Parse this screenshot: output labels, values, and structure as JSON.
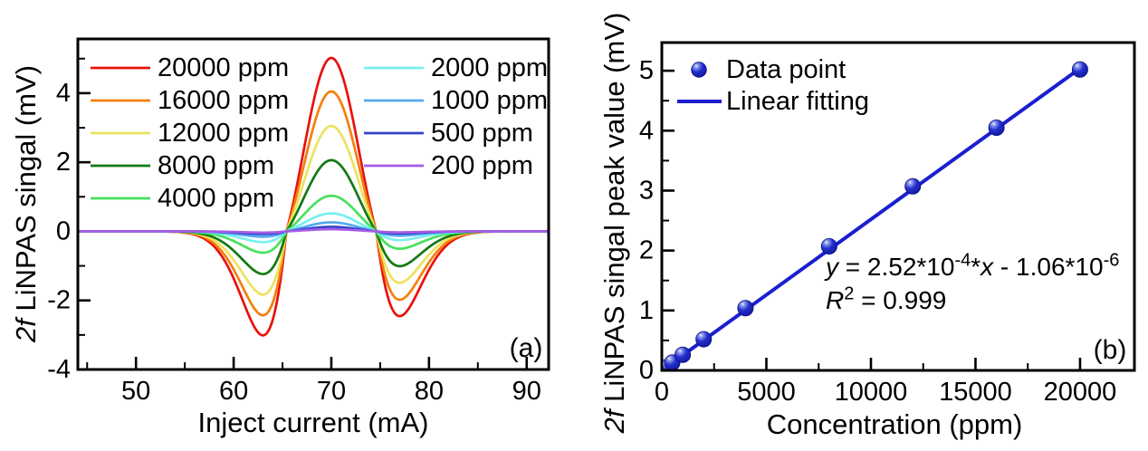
{
  "chart_data": [
    {
      "id": "a",
      "type": "line",
      "panel_label": "(a)",
      "xlabel": "Inject current (mA)",
      "ylabel_parts": [
        [
          "2f",
          "i"
        ],
        [
          " LiNPAS singal (mV)",
          ""
        ]
      ],
      "xlim": [
        44.05,
        92.25
      ],
      "ylim": [
        -4,
        5.57
      ],
      "xticks": [
        50,
        60,
        70,
        80,
        90
      ],
      "xminor": [
        45,
        55,
        65,
        75,
        85
      ],
      "yticks": [
        4,
        2,
        0,
        -2,
        -4
      ],
      "yminor": [
        5,
        3,
        1,
        -1,
        -3
      ],
      "lineshape_model": {
        "description": "2f WMS lineshape: f(v)=(1-v^2)*exp(-v^2/k), v=(x-center)/sigma; negative lobes scaled asymmetrically",
        "center_mA": 70,
        "sigma": 4.6,
        "k": 1.316,
        "neg_scale_left": 2.65,
        "neg_scale_right": 2.16
      },
      "series": [
        {
          "label": "20000 ppm",
          "color": "#e8110d",
          "peak_mV": 5.02
        },
        {
          "label": "16000 ppm",
          "color": "#f57f0a",
          "peak_mV": 4.05
        },
        {
          "label": "12000 ppm",
          "color": "#ece25e",
          "peak_mV": 3.05
        },
        {
          "label": "8000 ppm",
          "color": "#127a12",
          "peak_mV": 2.06
        },
        {
          "label": "4000 ppm",
          "color": "#46e25b",
          "peak_mV": 1.03
        },
        {
          "label": "2000 ppm",
          "color": "#76f0ef",
          "peak_mV": 0.52
        },
        {
          "label": "1000 ppm",
          "color": "#54aaf0",
          "peak_mV": 0.26
        },
        {
          "label": "500 ppm",
          "color": "#3544c8",
          "peak_mV": 0.13
        },
        {
          "label": "200 ppm",
          "color": "#a55ce5",
          "peak_mV": 0.06
        }
      ],
      "legend_col1": [
        0,
        1,
        2,
        3,
        4
      ],
      "legend_col2": [
        5,
        6,
        7,
        8
      ]
    },
    {
      "id": "b",
      "type": "scatter",
      "panel_label": "(b)",
      "xlabel": "Concentration (ppm)",
      "ylabel_parts": [
        [
          "2f",
          "i"
        ],
        [
          " LiNPAS singal peak value (mV)",
          ""
        ]
      ],
      "xlim": [
        0,
        22600
      ],
      "ylim": [
        0,
        5.47
      ],
      "xticks": [
        0,
        5000,
        10000,
        15000,
        20000
      ],
      "xminor": [
        2500,
        7500,
        12500,
        17500
      ],
      "yticks": [
        0,
        1,
        2,
        3,
        4,
        5
      ],
      "yminor": [
        0.5,
        1.5,
        2.5,
        3.5,
        4.5
      ],
      "points": {
        "x": [
          200,
          500,
          1000,
          2000,
          4000,
          8000,
          12000,
          16000,
          20000
        ],
        "y": [
          0.05,
          0.13,
          0.26,
          0.52,
          1.04,
          2.07,
          3.07,
          4.05,
          5.02
        ]
      },
      "fit": {
        "slope": 0.000252,
        "intercept": -1.06e-06
      },
      "equation_parts": [
        [
          "y",
          "i"
        ],
        [
          " = 2.52*10",
          ""
        ],
        [
          "-4",
          "sup"
        ],
        [
          "*",
          ""
        ],
        [
          "x",
          "i"
        ],
        [
          " - 1.06*10",
          ""
        ],
        [
          "-6",
          "sup"
        ]
      ],
      "r2_parts": [
        [
          "R",
          "i"
        ],
        [
          "2",
          "sup"
        ],
        [
          " = 0.999",
          ""
        ]
      ],
      "legend": [
        {
          "label": "Data point",
          "type": "marker"
        },
        {
          "label": "Linear fitting",
          "type": "line"
        }
      ],
      "marker_color": "#2430d8",
      "line_color": "#1b1fd0"
    }
  ]
}
